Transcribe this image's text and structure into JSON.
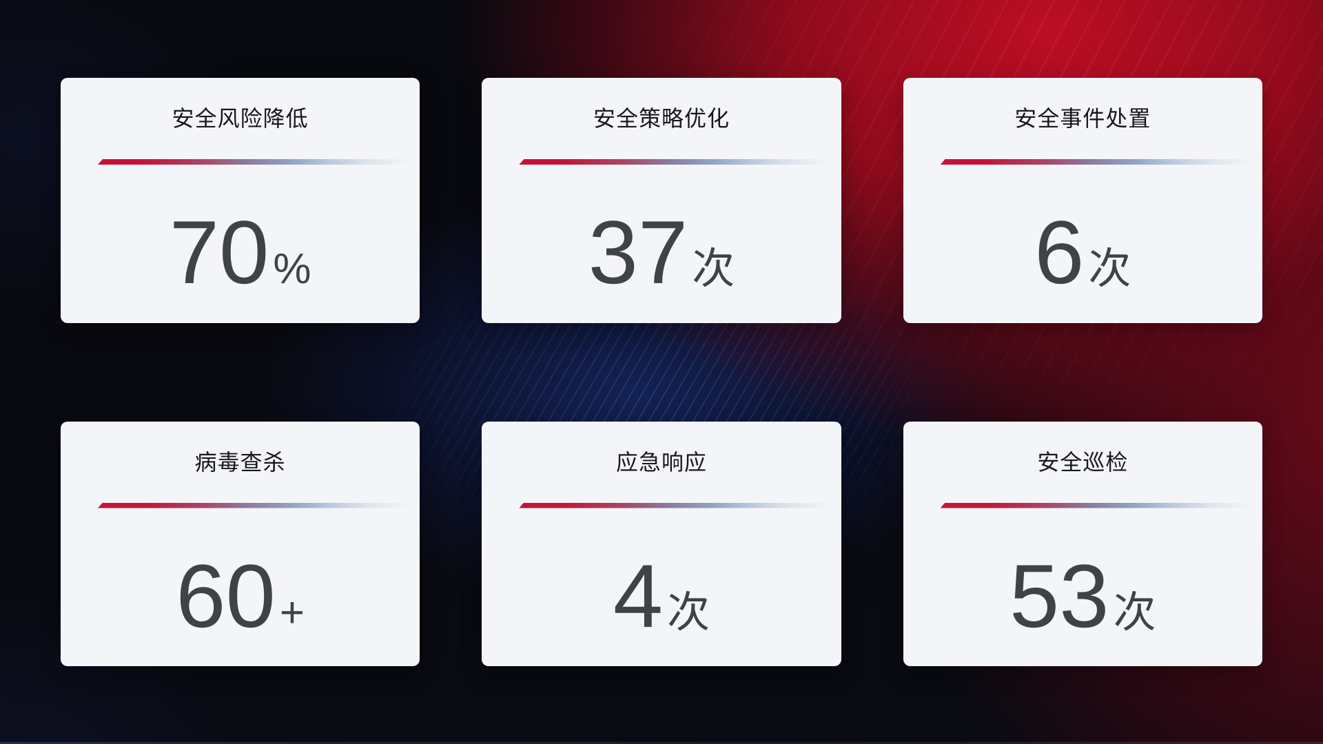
{
  "cards": [
    {
      "title": "安全风险降低",
      "value": "70",
      "unit": "%"
    },
    {
      "title": "安全策略优化",
      "value": "37",
      "unit": "次"
    },
    {
      "title": "安全事件处置",
      "value": "6",
      "unit": "次"
    },
    {
      "title": "病毒查杀",
      "value": "60",
      "unit": "+"
    },
    {
      "title": "应急响应",
      "value": "4",
      "unit": "次"
    },
    {
      "title": "安全巡检",
      "value": "53",
      "unit": "次"
    }
  ],
  "colors": {
    "card_background": "#f4f5f8",
    "title_text": "#17181c",
    "value_text": "#3f4247",
    "divider_start": "#c41338",
    "divider_end": "#dde3ec",
    "background_dark": "#08090f",
    "background_red": "#c60e24",
    "background_blue_glow": "#1c3488"
  }
}
